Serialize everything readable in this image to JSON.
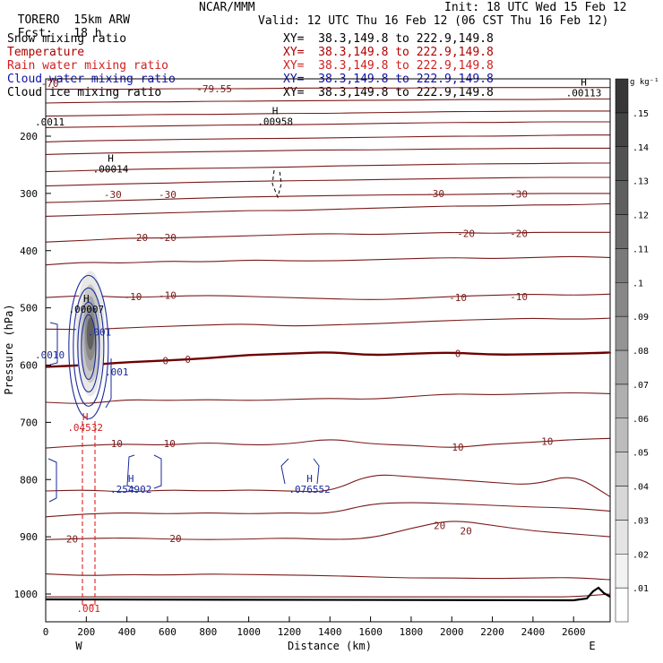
{
  "header": {
    "model": "TORERO",
    "resolution": "15km ARW",
    "center": "NCAR/MMM",
    "init": "Init: 18 UTC Wed 15 Feb 12",
    "fcst_label": "Fcst:",
    "fcst_value": "18 h",
    "valid": "Valid: 12 UTC Thu 16 Feb 12 (06 CST Thu 16 Feb 12)"
  },
  "fields": [
    {
      "name": "Snow mixing ratio",
      "xy": "XY=  38.3,149.8 to 222.9,149.8",
      "color": "#000000"
    },
    {
      "name": "Temperature",
      "xy": "XY=  38.3,149.8 to 222.9,149.8",
      "color": "#b00000"
    },
    {
      "name": "Rain water mixing ratio",
      "xy": "XY=  38.3,149.8 to 222.9,149.8",
      "color": "#d02020"
    },
    {
      "name": "Cloud water mixing ratio",
      "xy": "XY=  38.3,149.8 to 222.9,149.8",
      "color": "#1010b0"
    },
    {
      "name": "Cloud ice mixing ratio",
      "xy": "XY=  38.3,149.8 to 222.9,149.8",
      "color": "#000000"
    }
  ],
  "colorbar": {
    "unit": "g kg⁻¹",
    "ticks": [
      ".01",
      ".02",
      ".03",
      ".04",
      ".05",
      ".06",
      ".07",
      ".08",
      ".09",
      ".1",
      ".11",
      ".12",
      ".13",
      ".14",
      ".15"
    ]
  },
  "colors": {
    "temperature": "#7a1a1a",
    "freezing_line": "#6e0000",
    "cloud_water": "#1a2a9a",
    "rain": "#e02020",
    "terrain": "#000000"
  },
  "chart_data": {
    "type": "cross-section contour",
    "xlabel": "Distance (km)",
    "ylabel": "Pressure (hPa)",
    "xlim": [
      0,
      2780
    ],
    "ylim": [
      1050,
      100
    ],
    "x_ticks": [
      0,
      200,
      400,
      600,
      800,
      1000,
      1200,
      1400,
      1600,
      1800,
      2000,
      2200,
      2400,
      2600
    ],
    "y_ticks": [
      200,
      300,
      400,
      500,
      600,
      700,
      800,
      900,
      1000
    ],
    "x_end_labels": {
      "left": "W",
      "right": "E"
    },
    "temperature_isotherms": [
      {
        "level": 30,
        "p": [
          1005,
          1005,
          1005,
          1005,
          1005,
          1005,
          1005,
          1005,
          1005,
          1005,
          1005,
          1005,
          1005,
          1005,
          1000
        ]
      },
      {
        "level": 25,
        "p": [
          965,
          968,
          966,
          967,
          965,
          966,
          967,
          968,
          970,
          972,
          972,
          973,
          972,
          971,
          975
        ]
      },
      {
        "level": 20,
        "p": [
          905,
          903,
          902,
          904,
          905,
          904,
          902,
          905,
          903,
          885,
          870,
          880,
          890,
          895,
          900
        ]
      },
      {
        "level": 15,
        "p": [
          865,
          860,
          858,
          860,
          858,
          860,
          858,
          860,
          842,
          840,
          842,
          845,
          848,
          850,
          855
        ]
      },
      {
        "level": 12,
        "p": [
          820,
          818,
          822,
          818,
          820,
          818,
          820,
          822,
          790,
          795,
          800,
          805,
          810,
          790,
          830
        ]
      },
      {
        "level": 10,
        "p": [
          745,
          740,
          738,
          740,
          735,
          740,
          738,
          728,
          738,
          740,
          745,
          738,
          735,
          730,
          728
        ]
      },
      {
        "level": 5,
        "p": [
          665,
          668,
          660,
          662,
          660,
          662,
          660,
          658,
          660,
          655,
          650,
          652,
          650,
          648,
          650
        ]
      },
      {
        "level": 0,
        "p": [
          603,
          600,
          595,
          592,
          588,
          582,
          580,
          577,
          583,
          580,
          578,
          582,
          581,
          580,
          578
        ]
      },
      {
        "level": -5,
        "p": [
          537,
          538,
          535,
          532,
          530,
          528,
          532,
          530,
          528,
          525,
          522,
          520,
          518,
          520,
          518
        ]
      },
      {
        "level": -10,
        "p": [
          482,
          478,
          482,
          480,
          478,
          480,
          482,
          484,
          486,
          484,
          480,
          478,
          476,
          478,
          476
        ]
      },
      {
        "level": -15,
        "p": [
          425,
          420,
          422,
          418,
          420,
          416,
          418,
          418,
          416,
          414,
          412,
          414,
          412,
          410,
          412
        ]
      },
      {
        "level": -20,
        "p": [
          385,
          382,
          378,
          378,
          376,
          374,
          372,
          370,
          372,
          370,
          368,
          370,
          368,
          368,
          368
        ]
      },
      {
        "level": -25,
        "p": [
          340,
          338,
          336,
          334,
          332,
          330,
          330,
          328,
          326,
          324,
          322,
          322,
          320,
          320,
          318
        ]
      },
      {
        "level": -30,
        "p": [
          316,
          314,
          312,
          310,
          308,
          306,
          305,
          304,
          303,
          302,
          302,
          301,
          300,
          300,
          300
        ]
      },
      {
        "level": -35,
        "p": [
          287,
          285,
          283,
          282,
          280,
          279,
          278,
          277,
          276,
          275,
          274,
          273,
          272,
          272,
          272
        ]
      },
      {
        "level": -40,
        "p": [
          262,
          260,
          258,
          257,
          256,
          255,
          254,
          252,
          251,
          250,
          249,
          248,
          248,
          247,
          247
        ]
      },
      {
        "level": -45,
        "p": [
          232,
          230,
          229,
          228,
          227,
          226,
          225,
          224,
          224,
          223,
          222,
          222,
          221,
          221,
          221
        ]
      },
      {
        "level": -50,
        "p": [
          210,
          208,
          207,
          206,
          205,
          204,
          204,
          203,
          202,
          201,
          200,
          200,
          199,
          198,
          198
        ]
      },
      {
        "level": -55,
        "p": [
          185,
          184,
          183,
          182,
          181,
          180,
          180,
          179,
          178,
          177,
          176,
          176,
          175,
          175,
          175
        ]
      },
      {
        "level": -60,
        "p": [
          165,
          164,
          163,
          162,
          162,
          161,
          160,
          160,
          159,
          158,
          157,
          157,
          156,
          156,
          156
        ]
      },
      {
        "level": -65,
        "p": [
          142,
          141,
          140,
          140,
          139,
          139,
          138,
          138,
          137,
          137,
          136,
          136,
          136,
          135,
          135
        ]
      },
      {
        "level": -70,
        "p": [
          118,
          118,
          118,
          117,
          117,
          117,
          116,
          116,
          116,
          116,
          115,
          115,
          115,
          115,
          115
        ]
      }
    ],
    "isotherm_x": [
      0,
      200,
      400,
      600,
      800,
      1000,
      1200,
      1400,
      1600,
      1800,
      2000,
      2200,
      2400,
      2600,
      2780
    ],
    "isotherm_labels": [
      {
        "text": "-79.55",
        "x": 830,
        "p": 117
      },
      {
        "text": "-70",
        "x": 20,
        "p": 108
      },
      {
        "text": "-30",
        "x": 330,
        "p": 302
      },
      {
        "text": "-30",
        "x": 600,
        "p": 302
      },
      {
        "text": "-30",
        "x": 1920,
        "p": 300
      },
      {
        "text": "-30",
        "x": 2330,
        "p": 301
      },
      {
        "text": "-20",
        "x": 460,
        "p": 377
      },
      {
        "text": "-20",
        "x": 600,
        "p": 377
      },
      {
        "text": "-20",
        "x": 2070,
        "p": 370
      },
      {
        "text": "-20",
        "x": 2330,
        "p": 370
      },
      {
        "text": "-10",
        "x": 430,
        "p": 480
      },
      {
        "text": "-10",
        "x": 600,
        "p": 478
      },
      {
        "text": "-10",
        "x": 2030,
        "p": 482
      },
      {
        "text": "-10",
        "x": 2330,
        "p": 480
      },
      {
        "text": "0",
        "x": 590,
        "p": 592
      },
      {
        "text": "0",
        "x": 700,
        "p": 590
      },
      {
        "text": "0",
        "x": 2030,
        "p": 580
      },
      {
        "text": "10",
        "x": 350,
        "p": 737
      },
      {
        "text": "10",
        "x": 610,
        "p": 737
      },
      {
        "text": "10",
        "x": 2030,
        "p": 743
      },
      {
        "text": "10",
        "x": 2470,
        "p": 733
      },
      {
        "text": "20",
        "x": 130,
        "p": 904
      },
      {
        "text": "20",
        "x": 640,
        "p": 903
      },
      {
        "text": "20",
        "x": 1940,
        "p": 880
      },
      {
        "text": "20",
        "x": 2070,
        "p": 890
      }
    ],
    "extrema_labels": [
      {
        "mark": "H",
        "value": ".00007",
        "x": 200,
        "p": 505,
        "color": "#000000"
      },
      {
        "mark": "H",
        "value": ".00014",
        "x": 320,
        "p": 260,
        "color": "#000000"
      },
      {
        "mark": "H",
        "value": ".00958",
        "x": 1130,
        "p": 177,
        "color": "#000000"
      },
      {
        "mark": "H",
        "value": ".00113",
        "x": 2650,
        "p": 127,
        "color": "#000000"
      },
      {
        "mark": "",
        "value": ".0011",
        "x": 20,
        "p": 178,
        "color": "#000000"
      },
      {
        "mark": "H",
        "value": ".04532",
        "x": 195,
        "p": 712,
        "color": "#d02020"
      },
      {
        "mark": "H",
        "value": ".254902",
        "x": 420,
        "p": 820,
        "color": "#1a2a9a"
      },
      {
        "mark": "H",
        "value": ".076552",
        "x": 1300,
        "p": 820,
        "color": "#1a2a9a"
      },
      {
        "mark": "",
        "value": ".001",
        "x": 265,
        "p": 545,
        "color": "#1a2a9a"
      },
      {
        "mark": "",
        "value": ".001",
        "x": 350,
        "p": 615,
        "color": "#1a2a9a"
      },
      {
        "mark": "",
        "value": ".0010",
        "x": 20,
        "p": 585,
        "color": "#1a2a9a"
      },
      {
        "mark": "",
        "value": ".001",
        "x": 210,
        "p": 1028,
        "color": "#d02020"
      }
    ],
    "snow_max": {
      "x": 220,
      "p": 545,
      "value": 0.15
    }
  }
}
